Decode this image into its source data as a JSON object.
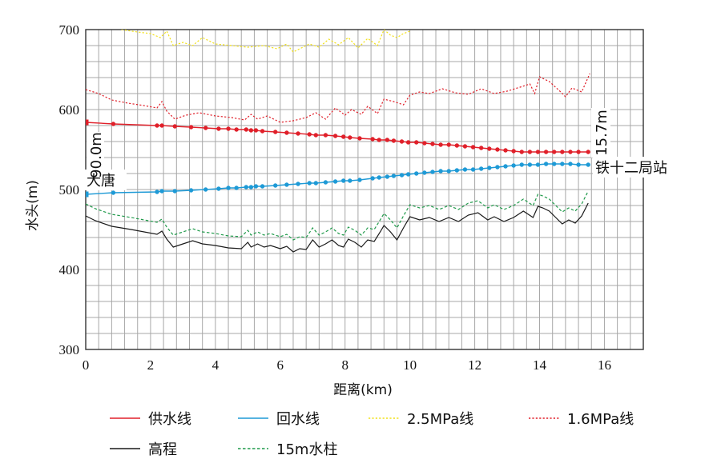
{
  "chart_data": {
    "type": "line",
    "xlabel": "距离(km)",
    "ylabel": "水头(m)",
    "xlim": [
      0,
      17.2
    ],
    "ylim": [
      300,
      700
    ],
    "xticks": [
      "0",
      "2",
      "4",
      "6",
      "8",
      "10",
      "12",
      "14",
      "16"
    ],
    "yticks": [
      "300",
      "400",
      "500",
      "600",
      "700"
    ],
    "grid": true,
    "legend_position": "bottom",
    "annotations": {
      "start_station": "大唐",
      "end_station": "铁十二局站",
      "start_diff": "90.0m",
      "end_diff": "15.7m"
    },
    "series": [
      {
        "name": "供水线",
        "color": "#e0202a",
        "dash": "solid",
        "markers": true,
        "x": [
          0,
          0.85,
          2.2,
          2.35,
          2.75,
          3.25,
          3.7,
          4.1,
          4.4,
          4.65,
          4.95,
          5.1,
          5.25,
          5.45,
          5.85,
          6.2,
          6.55,
          6.9,
          7.1,
          7.4,
          7.7,
          7.95,
          8.15,
          8.45,
          8.85,
          9.05,
          9.3,
          9.5,
          9.75,
          9.95,
          10.2,
          10.45,
          10.7,
          10.95,
          11.2,
          11.45,
          11.7,
          11.95,
          12.2,
          12.45,
          12.7,
          12.95,
          13.2,
          13.45,
          13.7,
          13.95,
          14.2,
          14.45,
          14.7,
          14.95,
          15.2,
          15.5
        ],
        "values": [
          584,
          582,
          580,
          580,
          579,
          578,
          577,
          576,
          576,
          575,
          575,
          574,
          574,
          573,
          572,
          571,
          570,
          569,
          568,
          568,
          567,
          566,
          565,
          564,
          563,
          562,
          562,
          561,
          560,
          559,
          559,
          558,
          557,
          556,
          556,
          555,
          554,
          553,
          552,
          551,
          550,
          549,
          548,
          547,
          547,
          547,
          547,
          547,
          547,
          547,
          547,
          547
        ]
      },
      {
        "name": "回水线",
        "color": "#1e9ad6",
        "dash": "solid",
        "markers": true,
        "x": [
          0,
          0.85,
          2.2,
          2.35,
          2.75,
          3.25,
          3.7,
          4.1,
          4.4,
          4.65,
          4.95,
          5.1,
          5.25,
          5.45,
          5.85,
          6.2,
          6.55,
          6.9,
          7.1,
          7.4,
          7.7,
          7.95,
          8.15,
          8.45,
          8.85,
          9.05,
          9.3,
          9.5,
          9.75,
          9.95,
          10.2,
          10.45,
          10.7,
          10.95,
          11.2,
          11.45,
          11.7,
          11.95,
          12.2,
          12.45,
          12.7,
          12.95,
          13.2,
          13.45,
          13.7,
          13.95,
          14.2,
          14.45,
          14.7,
          14.95,
          15.2,
          15.5
        ],
        "values": [
          494,
          496,
          497,
          498,
          498,
          499,
          500,
          501,
          502,
          502,
          503,
          503,
          504,
          504,
          505,
          506,
          507,
          508,
          508,
          509,
          510,
          511,
          511,
          512,
          514,
          515,
          516,
          517,
          518,
          519,
          520,
          521,
          522,
          523,
          523,
          524,
          525,
          525,
          526,
          527,
          528,
          529,
          530,
          531,
          531,
          531,
          532,
          532,
          532,
          532,
          531,
          531
        ]
      },
      {
        "name": "2.5MPa线",
        "color": "#f2e11a",
        "dash": "dotted",
        "markers": false,
        "x": [
          1.1,
          1.6,
          2.0,
          2.3,
          2.5,
          2.7,
          3.0,
          3.3,
          3.6,
          4.0,
          4.5,
          5.0,
          5.5,
          5.9,
          6.2,
          6.4,
          6.6,
          6.9,
          7.2,
          7.5,
          7.8,
          8.1,
          8.4,
          8.7,
          9.0,
          9.2,
          9.4,
          9.6,
          9.8,
          10.0
        ],
        "values": [
          700,
          697,
          695,
          690,
          698,
          680,
          684,
          680,
          690,
          682,
          680,
          678,
          680,
          676,
          682,
          672,
          676,
          682,
          678,
          688,
          681,
          690,
          677,
          689,
          680,
          700,
          693,
          690,
          695,
          698
        ]
      },
      {
        "name": "1.6MPa线",
        "color": "#e0202a",
        "dash": "dotted",
        "markers": false,
        "x": [
          0,
          0.4,
          0.8,
          1.3,
          1.8,
          2.2,
          2.35,
          2.5,
          2.75,
          3.1,
          3.5,
          4.0,
          4.5,
          4.9,
          5.1,
          5.3,
          5.6,
          6.0,
          6.4,
          6.8,
          7.1,
          7.4,
          7.7,
          8.0,
          8.2,
          8.5,
          8.7,
          9.0,
          9.2,
          9.5,
          9.8,
          10.0,
          10.3,
          10.6,
          11.0,
          11.4,
          11.8,
          12.2,
          12.6,
          13.0,
          13.4,
          13.7,
          13.85,
          14.0,
          14.3,
          14.6,
          14.8,
          15.0,
          15.3,
          15.55
        ],
        "values": [
          625,
          620,
          612,
          608,
          605,
          602,
          610,
          598,
          588,
          593,
          596,
          592,
          590,
          587,
          594,
          588,
          592,
          584,
          586,
          590,
          596,
          588,
          602,
          593,
          600,
          594,
          604,
          595,
          613,
          610,
          606,
          618,
          622,
          620,
          626,
          621,
          619,
          626,
          620,
          623,
          628,
          632,
          620,
          641,
          635,
          624,
          616,
          627,
          622,
          645
        ]
      },
      {
        "name": "高程",
        "color": "#1a1a1a",
        "dash": "solid",
        "markers": false,
        "x": [
          0,
          0.3,
          0.8,
          1.4,
          2.2,
          2.35,
          2.5,
          2.7,
          3.0,
          3.3,
          3.6,
          4.0,
          4.4,
          4.8,
          5.0,
          5.1,
          5.3,
          5.5,
          5.7,
          6.0,
          6.2,
          6.4,
          6.6,
          6.8,
          7.0,
          7.2,
          7.4,
          7.6,
          7.8,
          7.95,
          8.1,
          8.3,
          8.5,
          8.7,
          8.9,
          9.1,
          9.2,
          9.4,
          9.6,
          9.8,
          10.0,
          10.3,
          10.6,
          10.9,
          11.2,
          11.5,
          11.8,
          12.1,
          12.4,
          12.6,
          12.9,
          13.2,
          13.5,
          13.8,
          13.95,
          14.1,
          14.3,
          14.5,
          14.7,
          14.9,
          15.1,
          15.3,
          15.5
        ],
        "values": [
          467,
          461,
          454,
          450,
          444,
          448,
          438,
          428,
          432,
          436,
          432,
          430,
          427,
          426,
          434,
          428,
          432,
          428,
          430,
          426,
          429,
          422,
          426,
          425,
          437,
          428,
          432,
          437,
          430,
          428,
          438,
          434,
          428,
          437,
          435,
          448,
          455,
          447,
          437,
          452,
          466,
          462,
          465,
          460,
          465,
          460,
          468,
          471,
          462,
          466,
          460,
          465,
          473,
          465,
          479,
          477,
          473,
          465,
          457,
          462,
          458,
          467,
          483
        ]
      },
      {
        "name": "15m水柱",
        "color": "#1f9a4a",
        "dash": "dashed",
        "markers": false,
        "x": [
          0,
          0.3,
          0.8,
          1.4,
          2.2,
          2.35,
          2.5,
          2.7,
          3.0,
          3.3,
          3.6,
          4.0,
          4.4,
          4.8,
          5.0,
          5.1,
          5.3,
          5.5,
          5.7,
          6.0,
          6.2,
          6.4,
          6.6,
          6.8,
          7.0,
          7.2,
          7.4,
          7.6,
          7.8,
          7.95,
          8.1,
          8.3,
          8.5,
          8.7,
          8.9,
          9.1,
          9.2,
          9.4,
          9.6,
          9.8,
          10.0,
          10.3,
          10.6,
          10.9,
          11.2,
          11.5,
          11.8,
          12.1,
          12.4,
          12.6,
          12.9,
          13.2,
          13.5,
          13.8,
          13.95,
          14.1,
          14.3,
          14.5,
          14.7,
          14.9,
          15.1,
          15.3,
          15.5
        ],
        "values": [
          482,
          476,
          469,
          465,
          459,
          463,
          453,
          443,
          447,
          451,
          447,
          445,
          442,
          441,
          449,
          443,
          447,
          443,
          445,
          441,
          444,
          437,
          441,
          440,
          452,
          443,
          447,
          452,
          445,
          443,
          453,
          449,
          443,
          452,
          450,
          463,
          470,
          462,
          452,
          467,
          481,
          477,
          480,
          475,
          480,
          475,
          483,
          486,
          477,
          481,
          475,
          480,
          488,
          480,
          494,
          492,
          488,
          480,
          472,
          477,
          473,
          482,
          498
        ]
      }
    ]
  }
}
